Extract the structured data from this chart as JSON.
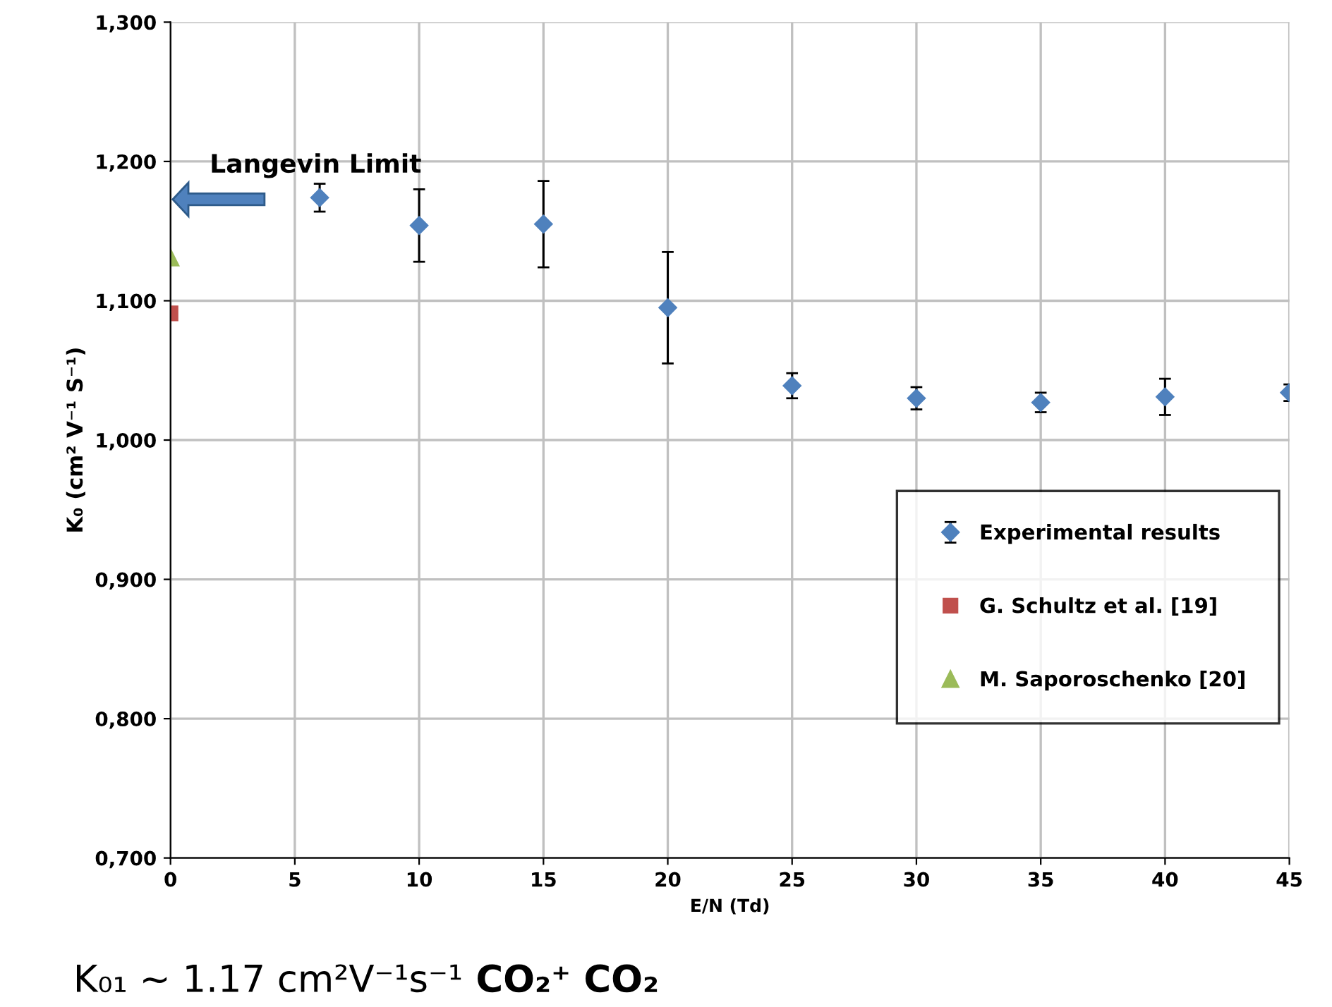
{
  "chart_data": {
    "type": "scatter",
    "xlabel": "E/N (Td)",
    "ylabel": "K₀ (cm² V⁻¹ S⁻¹)",
    "xlim": [
      0,
      45
    ],
    "xticks": [
      0,
      5,
      10,
      15,
      20,
      25,
      30,
      35,
      40,
      45
    ],
    "ylim": [
      0.7,
      1.3
    ],
    "yticks": [
      {
        "value": 0.7,
        "label": "0,700"
      },
      {
        "value": 0.8,
        "label": "0,800"
      },
      {
        "value": 0.9,
        "label": "0,900"
      },
      {
        "value": 1.0,
        "label": "1,000"
      },
      {
        "value": 1.1,
        "label": "1,100"
      },
      {
        "value": 1.2,
        "label": "1,200"
      },
      {
        "value": 1.3,
        "label": "1,300"
      }
    ],
    "grid": true,
    "legend": "right",
    "series": [
      {
        "name": "Experimental results",
        "color": "#4f81bd",
        "marker": "diamond",
        "x": [
          6,
          10,
          15,
          20,
          25,
          30,
          35,
          40,
          45
        ],
        "values": [
          1.174,
          1.154,
          1.155,
          1.095,
          1.039,
          1.03,
          1.027,
          1.031,
          1.034
        ],
        "errors": [
          0.01,
          0.026,
          0.031,
          0.04,
          0.009,
          0.008,
          0.007,
          0.013,
          0.006
        ]
      },
      {
        "name": "G. Schultz et al. [19]",
        "color": "#c0504d",
        "marker": "square",
        "x": [
          0
        ],
        "values": [
          1.091
        ]
      },
      {
        "name": "M. Saporoschenko [20]",
        "color": "#9bbb59",
        "marker": "triangle",
        "x": [
          0
        ],
        "values": [
          1.131
        ]
      }
    ],
    "annotations": [
      "Langevin Limit",
      "K₀₁ ~ 1.17 cm²V⁻¹s⁻¹",
      "CO₂⁺ CO₂"
    ]
  }
}
